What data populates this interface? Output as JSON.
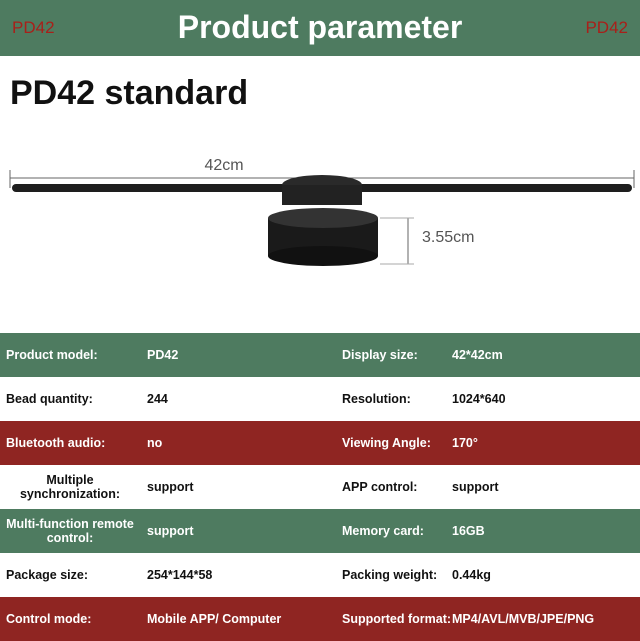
{
  "header": {
    "left": "PD42",
    "title": "Product parameter",
    "right": "PD42"
  },
  "heading": "PD42 standard",
  "dimensions": {
    "width": "42cm",
    "height": "3.55cm"
  },
  "table": {
    "rows": [
      [
        "Product model:",
        "PD42",
        "Display size:",
        "42*42cm"
      ],
      [
        "Bead quantity:",
        "244",
        "Resolution:",
        "1024*640"
      ],
      [
        "Bluetooth audio:",
        "no",
        "Viewing Angle:",
        "170°"
      ],
      [
        "Multiple synchronization:",
        "support",
        "APP control:",
        "support"
      ],
      [
        "Multi-function remote control:",
        "support",
        "Memory card:",
        "16GB"
      ],
      [
        "Package size:",
        "254*144*58",
        "Packing weight:",
        "0.44kg"
      ],
      [
        "Control mode:",
        "Mobile APP/ Computer",
        "Supported format:",
        "MP4/AVL/MVB/JPE/PNG"
      ]
    ]
  }
}
